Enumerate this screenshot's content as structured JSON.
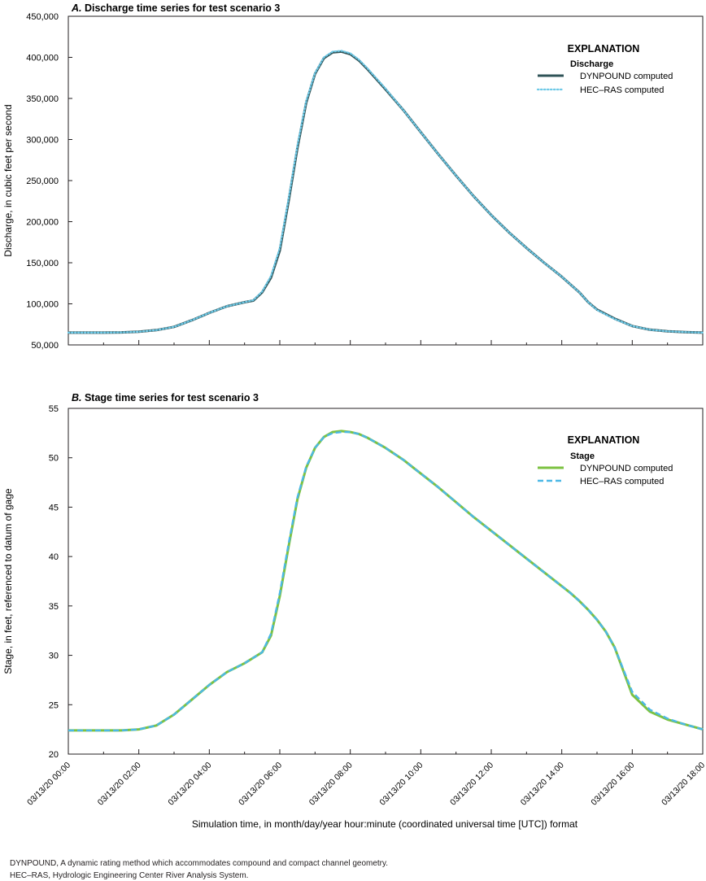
{
  "x_ticks": [
    "03/13/20 00:00",
    "03/13/20 02:00",
    "03/13/20 04:00",
    "03/13/20 06:00",
    "03/13/20 08:00",
    "03/13/20 10:00",
    "03/13/20 12:00",
    "03/13/20 14:00",
    "03/13/20 16:00",
    "03/13/20 18:00"
  ],
  "x_label": "Simulation time, in month/day/year hour:minute (coordinated universal time [UTC]) format",
  "footnotes": [
    "DYNPOUND, A dynamic rating method which accommodates compound and compact channel geometry.",
    "HEC–RAS, Hydrologic Engineering Center River Analysis System."
  ],
  "chart_data": [
    {
      "type": "line",
      "panel": "A.",
      "title": "Discharge time series for test scenario 3",
      "xlabel": "Simulation time, in month/day/year hour:minute (coordinated universal time [UTC]) format",
      "ylabel": "Discharge, in cubic feet per second",
      "xlim": [
        0,
        18
      ],
      "ylim": [
        50000,
        450000
      ],
      "y_ticks": [
        50000,
        100000,
        150000,
        200000,
        250000,
        300000,
        350000,
        400000,
        450000
      ],
      "y_tick_labels": [
        "50,000",
        "100,000",
        "150,000",
        "200,000",
        "250,000",
        "300,000",
        "350,000",
        "400,000",
        "450,000"
      ],
      "legend": {
        "title": "EXPLANATION",
        "subtitle": "Discharge",
        "position": "top-right"
      },
      "x": [
        0,
        0.5,
        1,
        1.5,
        2,
        2.5,
        3,
        3.5,
        4,
        4.5,
        5,
        5.25,
        5.5,
        5.75,
        6,
        6.25,
        6.5,
        6.75,
        7,
        7.25,
        7.5,
        7.75,
        8,
        8.25,
        8.5,
        9,
        9.5,
        10,
        10.5,
        11,
        11.5,
        12,
        12.5,
        13,
        13.5,
        14,
        14.5,
        14.75,
        15,
        15.5,
        16,
        16.5,
        17,
        17.5,
        18
      ],
      "series": [
        {
          "name": "DYNPOUND computed",
          "color": "#2f5357",
          "style": "solid",
          "values": [
            65000,
            65000,
            65000,
            65200,
            66000,
            68000,
            72000,
            80000,
            89000,
            97000,
            102000,
            104000,
            114000,
            132000,
            165000,
            225000,
            290000,
            345000,
            380000,
            399000,
            406000,
            407000,
            404000,
            396000,
            385000,
            361000,
            336000,
            309000,
            282000,
            256000,
            231000,
            208000,
            187000,
            168000,
            150000,
            133000,
            114000,
            102000,
            93000,
            82000,
            73000,
            68500,
            66500,
            65600,
            65000
          ]
        },
        {
          "name": "HEC–RAS computed",
          "color": "#6ec9e7",
          "style": "dotted",
          "values": [
            65000,
            65000,
            65000,
            65200,
            66000,
            68000,
            72000,
            80000,
            89000,
            97000,
            102000,
            104500,
            115000,
            134000,
            168000,
            228000,
            293000,
            347000,
            381000,
            400000,
            407000,
            408000,
            405000,
            397000,
            386000,
            362000,
            336000,
            309000,
            282000,
            256000,
            231000,
            208000,
            187000,
            168000,
            150000,
            133000,
            114000,
            102000,
            92500,
            81500,
            73000,
            68500,
            66500,
            65600,
            65000
          ]
        }
      ]
    },
    {
      "type": "line",
      "panel": "B.",
      "title": "Stage time series for test scenario 3",
      "xlabel": "Simulation time, in month/day/year hour:minute (coordinated universal time [UTC]) format",
      "ylabel": "Stage, in feet, referenced to datum of gage",
      "xlim": [
        0,
        18
      ],
      "ylim": [
        20,
        55
      ],
      "y_ticks": [
        20,
        25,
        30,
        35,
        40,
        45,
        50,
        55
      ],
      "y_tick_labels": [
        "20",
        "25",
        "30",
        "35",
        "40",
        "45",
        "50",
        "55"
      ],
      "legend": {
        "title": "EXPLANATION",
        "subtitle": "Stage",
        "position": "top-right"
      },
      "x": [
        0,
        0.5,
        1,
        1.5,
        2,
        2.5,
        3,
        3.5,
        4,
        4.5,
        5,
        5.5,
        5.75,
        6,
        6.25,
        6.5,
        6.75,
        7,
        7.25,
        7.5,
        7.75,
        8,
        8.25,
        8.5,
        9,
        9.5,
        10,
        10.5,
        11,
        11.5,
        12,
        12.5,
        13,
        13.5,
        14,
        14.25,
        14.5,
        14.75,
        15,
        15.25,
        15.5,
        16,
        16.5,
        17,
        17.5,
        18
      ],
      "series": [
        {
          "name": "DYNPOUND computed",
          "color": "#7cc242",
          "style": "solid",
          "values": [
            22.4,
            22.4,
            22.4,
            22.4,
            22.5,
            22.9,
            24.0,
            25.5,
            27.0,
            28.3,
            29.2,
            30.3,
            32.0,
            36.0,
            41.0,
            45.8,
            49.0,
            51.0,
            52.1,
            52.6,
            52.7,
            52.6,
            52.4,
            52.0,
            51.0,
            49.8,
            48.4,
            47.0,
            45.5,
            44.0,
            42.6,
            41.2,
            39.8,
            38.4,
            37.0,
            36.3,
            35.5,
            34.6,
            33.6,
            32.4,
            30.8,
            26.0,
            24.3,
            23.5,
            23.0,
            22.5
          ]
        },
        {
          "name": "HEC–RAS computed",
          "color": "#4cb8e6",
          "style": "dashed",
          "values": [
            22.4,
            22.4,
            22.4,
            22.4,
            22.5,
            22.9,
            24.0,
            25.5,
            27.0,
            28.3,
            29.2,
            30.3,
            32.2,
            36.3,
            41.3,
            46.0,
            49.1,
            51.0,
            52.1,
            52.5,
            52.6,
            52.6,
            52.4,
            52.0,
            51.0,
            49.8,
            48.4,
            47.0,
            45.5,
            44.0,
            42.6,
            41.2,
            39.8,
            38.4,
            37.0,
            36.3,
            35.5,
            34.6,
            33.6,
            32.4,
            30.8,
            26.3,
            24.5,
            23.6,
            23.0,
            22.5
          ]
        }
      ]
    }
  ]
}
